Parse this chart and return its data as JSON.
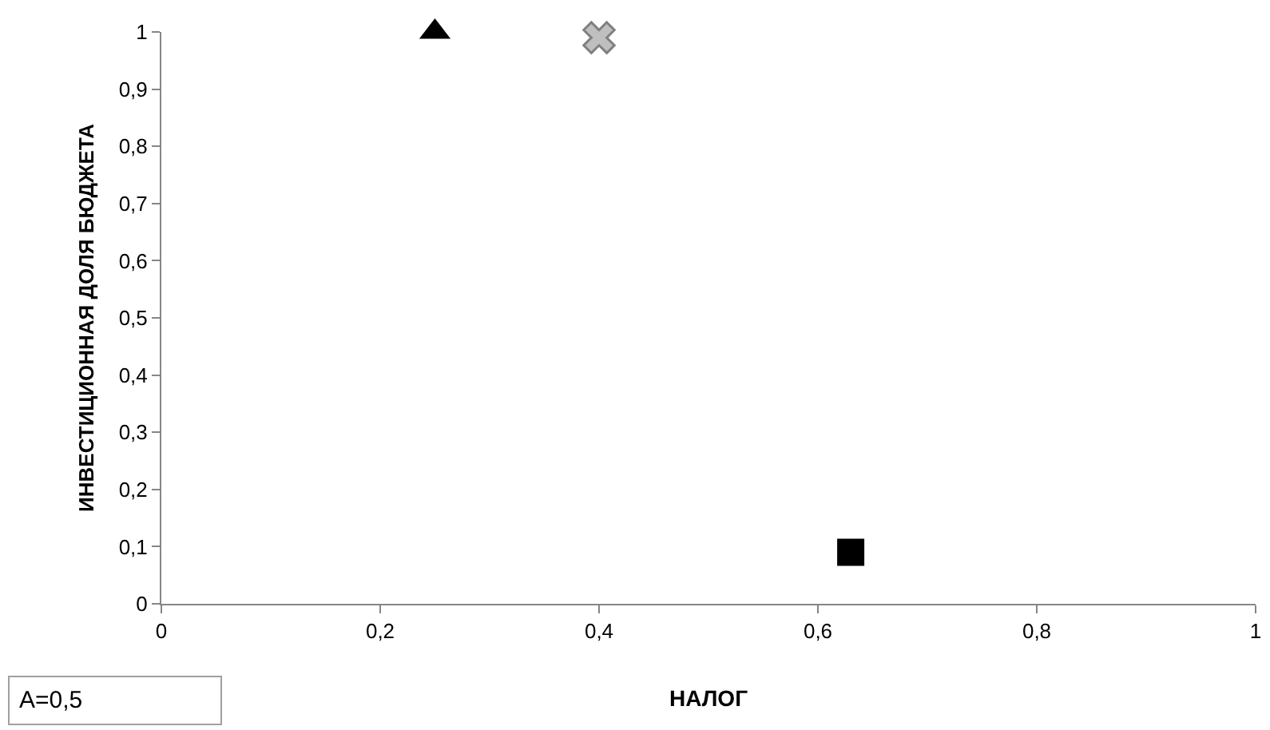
{
  "chart_data": {
    "type": "scatter",
    "xlabel": "НАЛОГ",
    "ylabel": "ИНВЕСТИЦИОННАЯ ДОЛЯ БЮДЖЕТА",
    "series": [
      {
        "x": [
          0.25
        ],
        "values": [
          1.0
        ],
        "color": "#000000",
        "marker": "triangle"
      },
      {
        "x": [
          0.4
        ],
        "values": [
          0.99
        ],
        "color": "#bfbfbf",
        "marker": "cross"
      },
      {
        "x": [
          0.63
        ],
        "values": [
          0.09
        ],
        "color": "#000000",
        "marker": "square"
      }
    ],
    "xlim": [
      0,
      1
    ],
    "ylim": [
      0,
      1
    ],
    "xticks": [
      0,
      {
        "value": 0.2,
        "label": "0,2"
      },
      {
        "value": 0.4,
        "label": "0,4"
      },
      {
        "value": 0.6,
        "label": "0,6"
      },
      {
        "value": 0.8,
        "label": "0,8"
      },
      1
    ],
    "yticks": [
      0,
      {
        "value": 0.1,
        "label": "0,1"
      },
      {
        "value": 0.2,
        "label": "0,2"
      },
      {
        "value": 0.3,
        "label": "0,3"
      },
      {
        "value": 0.4,
        "label": "0,4"
      },
      {
        "value": 0.5,
        "label": "0,5"
      },
      {
        "value": 0.6,
        "label": "0,6"
      },
      {
        "value": 0.7,
        "label": "0,7"
      },
      {
        "value": 0.8,
        "label": "0,8"
      },
      {
        "value": 0.9,
        "label": "0,9"
      },
      1
    ],
    "annotations": [
      "A=0,5"
    ]
  }
}
